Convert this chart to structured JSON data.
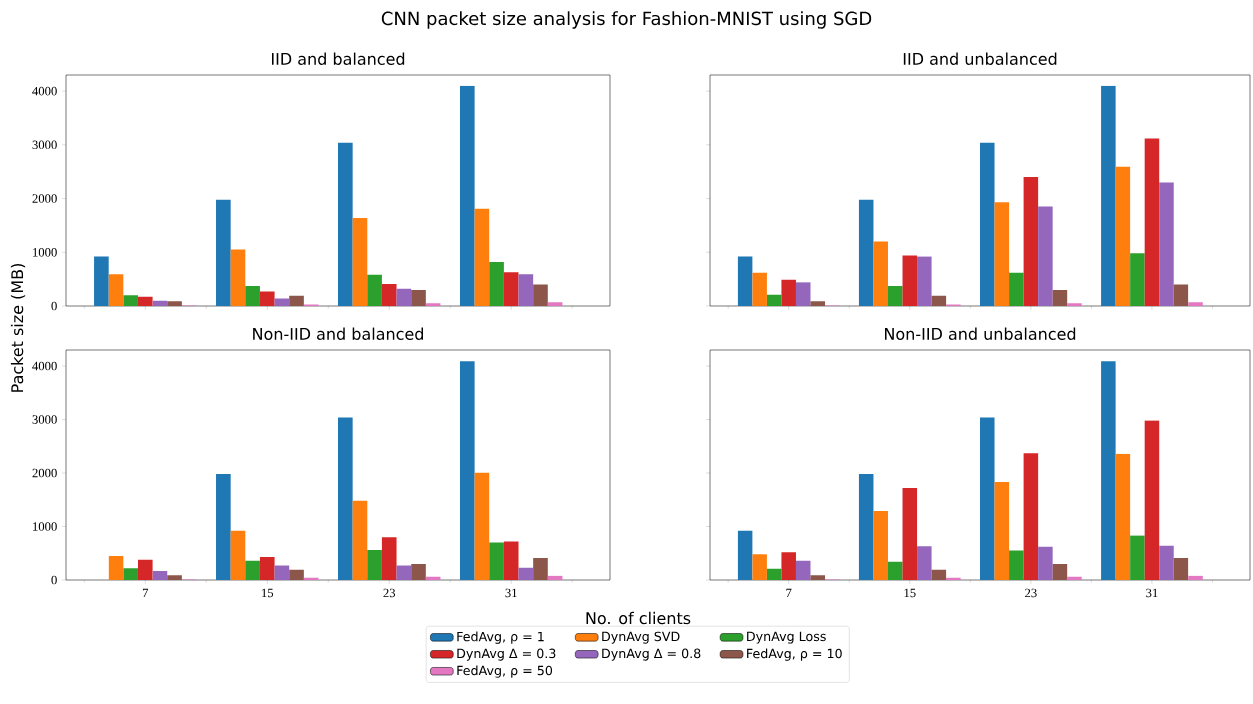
{
  "chart_data": [
    {
      "type": "bar",
      "title": "CNN packet size analysis for Fashion-MNIST using SGD",
      "subtitle": "IID and balanced",
      "xlabel": "No. of clients",
      "ylabel": "Packet size (MB)",
      "legend": "bottom",
      "tick_labels": "y",
      "categories": [
        "7",
        "15",
        "23",
        "31"
      ],
      "ylim": [
        0,
        4300
      ],
      "yticks": [
        0,
        1000,
        2000,
        3000,
        4000
      ],
      "series": [
        {
          "name": "FedAvg, ρ = 1",
          "color": "#1f77b4",
          "values": [
            920,
            1980,
            3040,
            4100
          ]
        },
        {
          "name": "DynAvg SVD",
          "color": "#ff7f0e",
          "values": [
            590,
            1050,
            1640,
            1810
          ]
        },
        {
          "name": "DynAvg Loss",
          "color": "#2ca02c",
          "values": [
            200,
            370,
            580,
            820
          ]
        },
        {
          "name": "DynAvg Δ = 0.3",
          "color": "#d62728",
          "values": [
            170,
            270,
            410,
            630
          ]
        },
        {
          "name": "DynAvg Δ = 0.8",
          "color": "#9467bd",
          "values": [
            100,
            140,
            320,
            590
          ]
        },
        {
          "name": "FedAvg, ρ = 10",
          "color": "#8c564b",
          "values": [
            90,
            190,
            300,
            400
          ]
        },
        {
          "name": "FedAvg, ρ = 50",
          "color": "#e377c2",
          "values": [
            10,
            30,
            50,
            70
          ]
        }
      ]
    },
    {
      "type": "bar",
      "title": "IID and unbalanced",
      "tick_labels": false,
      "categories": [
        "7",
        "15",
        "23",
        "31"
      ],
      "ylim": [
        0,
        4300
      ],
      "yticks": [
        0,
        1000,
        2000,
        3000,
        4000
      ],
      "series": [
        {
          "color": "#1f77b4",
          "values": [
            920,
            1980,
            3040,
            4100
          ]
        },
        {
          "color": "#ff7f0e",
          "values": [
            620,
            1200,
            1930,
            2590
          ]
        },
        {
          "color": "#2ca02c",
          "values": [
            210,
            370,
            620,
            980
          ]
        },
        {
          "color": "#d62728",
          "values": [
            490,
            940,
            2400,
            3120
          ]
        },
        {
          "color": "#9467bd",
          "values": [
            440,
            920,
            1850,
            2300
          ]
        },
        {
          "color": "#8c564b",
          "values": [
            90,
            190,
            300,
            400
          ]
        },
        {
          "color": "#e377c2",
          "values": [
            10,
            30,
            50,
            70
          ]
        }
      ]
    },
    {
      "type": "bar",
      "title": "Non-IID and balanced",
      "categories": [
        "7",
        "15",
        "23",
        "31"
      ],
      "ylim": [
        0,
        4300
      ],
      "yticks": [
        0,
        1000,
        2000,
        3000,
        4000
      ],
      "series": [
        {
          "color": "#1f77b4",
          "values": [
            null,
            1980,
            3040,
            4090
          ]
        },
        {
          "color": "#ff7f0e",
          "values": [
            450,
            920,
            1480,
            2010
          ]
        },
        {
          "color": "#2ca02c",
          "values": [
            220,
            360,
            560,
            700
          ]
        },
        {
          "color": "#d62728",
          "values": [
            380,
            430,
            800,
            720
          ]
        },
        {
          "color": "#9467bd",
          "values": [
            170,
            270,
            270,
            230
          ]
        },
        {
          "color": "#8c564b",
          "values": [
            90,
            190,
            300,
            410
          ]
        },
        {
          "color": "#e377c2",
          "values": [
            10,
            40,
            60,
            80
          ]
        }
      ]
    },
    {
      "type": "bar",
      "title": "Non-IID and unbalanced",
      "tick_labels": "x",
      "categories": [
        "7",
        "15",
        "23",
        "31"
      ],
      "ylim": [
        0,
        4300
      ],
      "yticks": [
        0,
        1000,
        2000,
        3000,
        4000
      ],
      "series": [
        {
          "color": "#1f77b4",
          "values": [
            920,
            1980,
            3040,
            4090
          ]
        },
        {
          "color": "#ff7f0e",
          "values": [
            480,
            1290,
            1830,
            2360
          ]
        },
        {
          "color": "#2ca02c",
          "values": [
            210,
            340,
            550,
            830
          ]
        },
        {
          "color": "#d62728",
          "values": [
            520,
            1720,
            2370,
            2980
          ]
        },
        {
          "color": "#9467bd",
          "values": [
            360,
            630,
            620,
            640
          ]
        },
        {
          "color": "#8c564b",
          "values": [
            90,
            190,
            300,
            410
          ]
        },
        {
          "color": "#e377c2",
          "values": [
            10,
            40,
            60,
            80
          ]
        }
      ]
    }
  ]
}
